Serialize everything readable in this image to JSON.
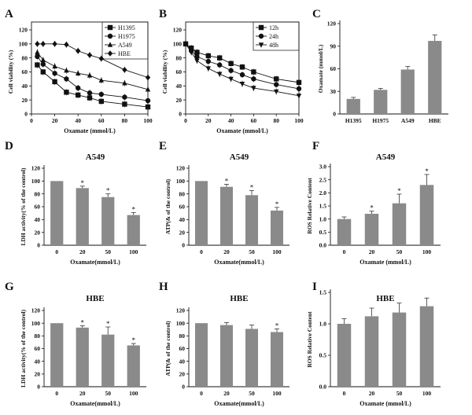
{
  "panels": [
    {
      "label": "A",
      "type": "line",
      "xlabel": "Oxamate (mmol/L)",
      "ylabel": "Cell viability (%)",
      "xlim": [
        0,
        100
      ],
      "ylim": [
        0,
        120
      ],
      "xticks": [
        0,
        20,
        40,
        60,
        80,
        100
      ],
      "yticks": [
        0,
        20,
        40,
        60,
        80,
        100,
        120
      ],
      "x": [
        5,
        10,
        20,
        30,
        40,
        50,
        60,
        80,
        100
      ],
      "legend": "top-right",
      "series": [
        {
          "name": "H1395",
          "marker": "square",
          "values": [
            70,
            60,
            46,
            31,
            27,
            23,
            18,
            14,
            10
          ]
        },
        {
          "name": "H1975",
          "marker": "circle",
          "values": [
            82,
            71,
            58,
            50,
            37,
            30,
            28,
            24,
            19
          ]
        },
        {
          "name": "A549",
          "marker": "triangle",
          "values": [
            88,
            77,
            68,
            62,
            58,
            55,
            48,
            44,
            35
          ]
        },
        {
          "name": "HBE",
          "marker": "diamond",
          "values": [
            100,
            100,
            100,
            99,
            90,
            84,
            79,
            63,
            52
          ]
        }
      ]
    },
    {
      "label": "B",
      "type": "line",
      "xlabel": "Oxamate (mmol/L)",
      "ylabel": "Cell viability (%)",
      "xlim": [
        0,
        100
      ],
      "ylim": [
        0,
        120
      ],
      "xticks": [
        0,
        20,
        40,
        60,
        80,
        100
      ],
      "yticks": [
        0,
        20,
        40,
        60,
        80,
        100,
        120
      ],
      "x": [
        0,
        5,
        10,
        20,
        30,
        40,
        50,
        60,
        80,
        100
      ],
      "legend": "top-right",
      "series": [
        {
          "name": "12h",
          "marker": "square",
          "values": [
            100,
            94,
            88,
            83,
            80,
            72,
            67,
            60,
            50,
            45
          ]
        },
        {
          "name": "24h",
          "marker": "circle",
          "values": [
            100,
            90,
            82,
            75,
            70,
            62,
            56,
            50,
            42,
            36
          ]
        },
        {
          "name": "48h",
          "marker": "triangle-down",
          "values": [
            100,
            88,
            76,
            65,
            57,
            50,
            43,
            37,
            32,
            26
          ]
        }
      ]
    },
    {
      "label": "C",
      "type": "bar",
      "xlabel": "",
      "ylabel": "Oxamate  (mmol/L)",
      "ylim": [
        0,
        120
      ],
      "yticks": [
        0,
        30,
        60,
        90,
        120
      ],
      "categories": [
        "H1395",
        "H1975",
        "A549",
        "HBE"
      ],
      "values": [
        20,
        32,
        59,
        97
      ],
      "errors": [
        2,
        2,
        4,
        8
      ]
    },
    {
      "label": "D",
      "title": "A549",
      "type": "bar",
      "xlabel": "Oxamate(mmol/L)",
      "ylabel": "LDH activity(% of the control)",
      "ylim": [
        0,
        120
      ],
      "yticks": [
        0,
        20,
        40,
        60,
        80,
        100,
        120
      ],
      "categories": [
        "0",
        "20",
        "50",
        "100"
      ],
      "values": [
        100,
        89,
        75,
        47
      ],
      "errors": [
        0,
        3,
        5,
        4
      ],
      "significance": [
        "",
        "*",
        "*",
        "*"
      ]
    },
    {
      "label": "E",
      "title": "A549",
      "type": "bar",
      "xlabel": "Oxamate(mmol/L)",
      "ylabel": "ATP(& of the control)",
      "ylim": [
        0,
        120
      ],
      "yticks": [
        0,
        20,
        40,
        60,
        80,
        100,
        120
      ],
      "categories": [
        "0",
        "20",
        "50",
        "100"
      ],
      "values": [
        100,
        91,
        78,
        54
      ],
      "errors": [
        0,
        4,
        7,
        5
      ],
      "significance": [
        "",
        "*",
        "*",
        "*"
      ]
    },
    {
      "label": "F",
      "title": "A549",
      "type": "bar",
      "xlabel": "Oxamate  (mmol/L)",
      "ylabel": "ROS Relative Content",
      "ylim": [
        0,
        3.0
      ],
      "yticks": [
        "0.0",
        "0.5",
        "1.0",
        "1.5",
        "2.0",
        "2.5",
        "3.0"
      ],
      "categories": [
        "0",
        "20",
        "50",
        "100"
      ],
      "values": [
        1.0,
        1.2,
        1.6,
        2.3
      ],
      "errors": [
        0.08,
        0.1,
        0.35,
        0.4
      ],
      "significance": [
        "",
        "*",
        "*",
        "*"
      ]
    },
    {
      "label": "G",
      "title": "HBE",
      "type": "bar",
      "xlabel": "Oxamate(mmol/L)",
      "ylabel": "LDH activity(% of the control)",
      "ylim": [
        0,
        120
      ],
      "yticks": [
        0,
        20,
        40,
        60,
        80,
        100,
        120
      ],
      "categories": [
        "0",
        "20",
        "50",
        "100"
      ],
      "values": [
        100,
        93,
        82,
        65
      ],
      "errors": [
        0,
        3,
        12,
        3
      ],
      "significance": [
        "",
        "*",
        "*",
        "*"
      ]
    },
    {
      "label": "H",
      "title": "HBE",
      "type": "bar",
      "xlabel": "Oxamate(mmol/L)",
      "ylabel": "ATP(& of the control)",
      "ylim": [
        0,
        120
      ],
      "yticks": [
        0,
        20,
        40,
        60,
        80,
        100,
        120
      ],
      "categories": [
        "0",
        "20",
        "50",
        "100"
      ],
      "values": [
        100,
        97,
        91,
        86
      ],
      "errors": [
        0,
        4,
        6,
        5
      ],
      "significance": [
        "",
        "",
        "",
        "*"
      ]
    },
    {
      "label": "I",
      "title": "HBE",
      "type": "bar",
      "xlabel": "Oxamate  (mmol/L)",
      "ylabel": "ROS Relative Content",
      "ylim": [
        0,
        1.5
      ],
      "yticks": [
        "0.0",
        "0.5",
        "1.0",
        "1.5"
      ],
      "categories": [
        "0",
        "20",
        "50",
        "100"
      ],
      "values": [
        1.0,
        1.12,
        1.18,
        1.28
      ],
      "errors": [
        0.08,
        0.13,
        0.15,
        0.13
      ],
      "significance": [
        "",
        "",
        "",
        ""
      ]
    }
  ],
  "colors": {
    "bar": "#8a8a8a",
    "line": "#111111"
  }
}
